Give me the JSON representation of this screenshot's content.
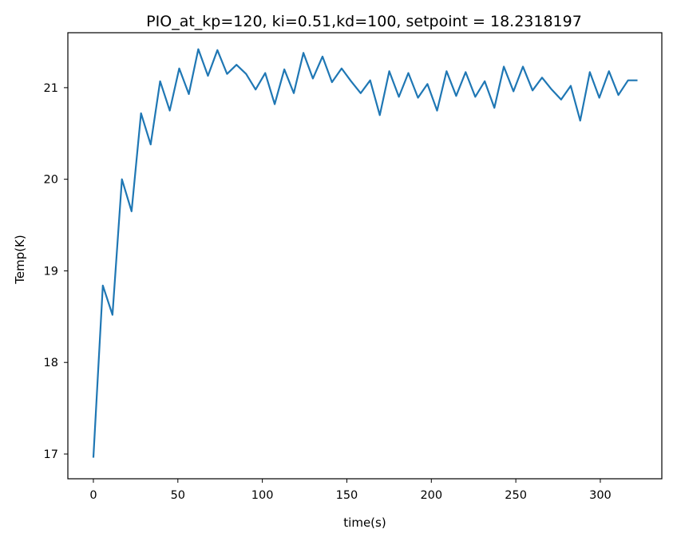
{
  "chart_data": {
    "type": "line",
    "title": "PIO_at_kp=120, ki=0.51,kd=100, setpoint = 18.2318197",
    "xlabel": "time(s)",
    "ylabel": "Temp(K)",
    "xlim": [
      -15.1,
      336.4
    ],
    "ylim": [
      16.73,
      21.6
    ],
    "xticks": [
      0,
      50,
      100,
      150,
      200,
      250,
      300
    ],
    "yticks": [
      17,
      18,
      19,
      20,
      21
    ],
    "grid": false,
    "legend": "none",
    "series": [
      {
        "color": "#1f77b4",
        "x": [
          0,
          5.6,
          11.3,
          16.9,
          22.6,
          28.2,
          33.9,
          39.5,
          45.2,
          50.8,
          56.5,
          62.1,
          67.8,
          73.4,
          79.1,
          84.7,
          90.4,
          96.0,
          101.7,
          107.3,
          113.0,
          118.6,
          124.3,
          129.9,
          135.6,
          141.2,
          146.9,
          152.5,
          158.2,
          163.8,
          169.5,
          175.1,
          180.8,
          186.4,
          192.1,
          197.7,
          203.4,
          209.0,
          214.7,
          220.3,
          226.0,
          231.6,
          237.3,
          242.9,
          248.6,
          254.2,
          259.9,
          265.5,
          271.2,
          276.8,
          282.5,
          288.1,
          293.8,
          299.4,
          305.1,
          310.7,
          316.4,
          322.0
        ],
        "y": [
          16.96,
          18.84,
          18.52,
          20.0,
          19.65,
          20.72,
          20.38,
          21.07,
          20.75,
          21.21,
          20.93,
          21.42,
          21.13,
          21.41,
          21.15,
          21.25,
          21.15,
          20.98,
          21.16,
          20.82,
          21.2,
          20.94,
          21.38,
          21.1,
          21.34,
          21.06,
          21.21,
          21.07,
          20.94,
          21.08,
          20.7,
          21.18,
          20.9,
          21.16,
          20.89,
          21.04,
          20.75,
          21.18,
          20.91,
          21.17,
          20.9,
          21.07,
          20.78,
          21.23,
          20.96,
          21.23,
          20.97,
          21.11,
          20.98,
          20.87,
          21.02,
          20.64,
          21.17,
          20.89,
          21.18,
          20.92,
          21.08,
          21.08
        ]
      }
    ]
  }
}
